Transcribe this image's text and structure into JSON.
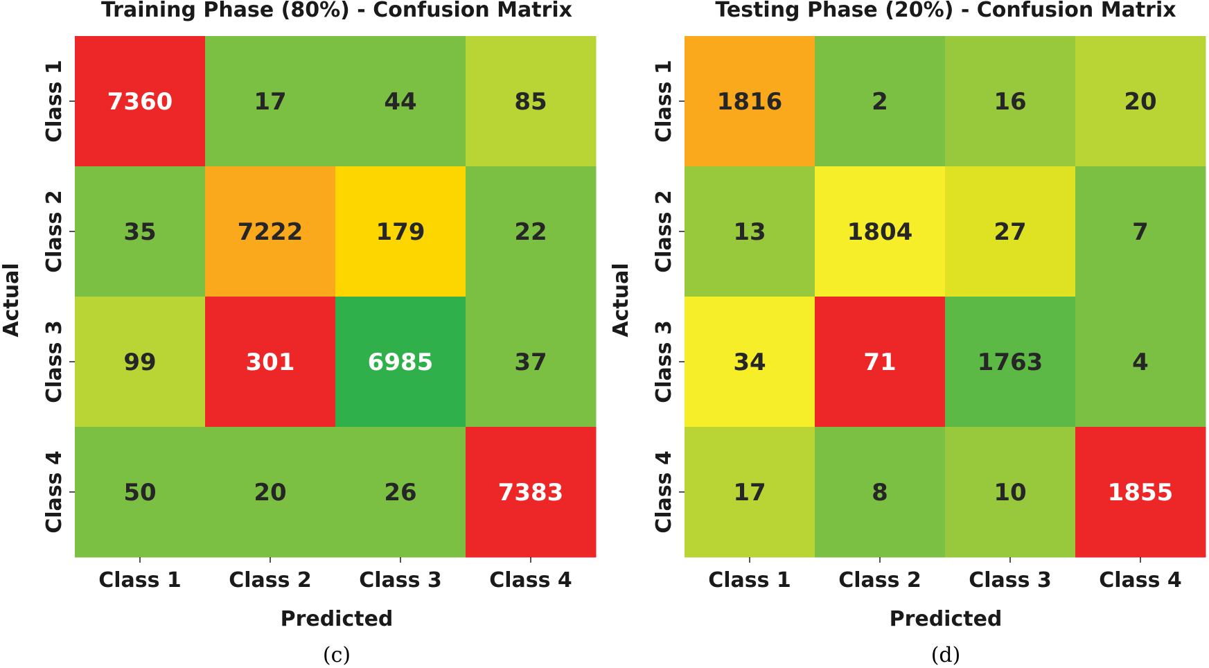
{
  "chart_data": [
    {
      "type": "heatmap",
      "title": "Training Phase (80%) - Confusion Matrix",
      "xlabel": "Predicted",
      "ylabel": "Actual",
      "x_categories": [
        "Class 1",
        "Class 2",
        "Class 3",
        "Class 4"
      ],
      "y_categories": [
        "Class 1",
        "Class 2",
        "Class 3",
        "Class 4"
      ],
      "values": [
        [
          7360,
          17,
          44,
          85
        ],
        [
          35,
          7222,
          179,
          22
        ],
        [
          99,
          301,
          6985,
          37
        ],
        [
          50,
          20,
          26,
          7383
        ]
      ],
      "cell_colors": [
        [
          "#ed2728",
          "#7cc043",
          "#7cc043",
          "#b8d435"
        ],
        [
          "#7cc043",
          "#faa91c",
          "#fdd600",
          "#7cc043"
        ],
        [
          "#b8d435",
          "#ed2728",
          "#30b04b",
          "#7cc043"
        ],
        [
          "#7cc043",
          "#7cc043",
          "#7cc043",
          "#ed2728"
        ]
      ],
      "text_colors": [
        [
          "#ffffff",
          "#262626",
          "#262626",
          "#262626"
        ],
        [
          "#262626",
          "#262626",
          "#262626",
          "#262626"
        ],
        [
          "#262626",
          "#ffffff",
          "#ffffff",
          "#262626"
        ],
        [
          "#262626",
          "#262626",
          "#262626",
          "#ffffff"
        ]
      ],
      "caption": "(c)"
    },
    {
      "type": "heatmap",
      "title": "Testing Phase (20%) - Confusion Matrix",
      "xlabel": "Predicted",
      "ylabel": "Actual",
      "x_categories": [
        "Class 1",
        "Class 2",
        "Class 3",
        "Class 4"
      ],
      "y_categories": [
        "Class 1",
        "Class 2",
        "Class 3",
        "Class 4"
      ],
      "values": [
        [
          1816,
          2,
          16,
          20
        ],
        [
          13,
          1804,
          27,
          7
        ],
        [
          34,
          71,
          1763,
          4
        ],
        [
          17,
          8,
          10,
          1855
        ]
      ],
      "cell_colors": [
        [
          "#faa91c",
          "#7cc043",
          "#98c93c",
          "#b8d435"
        ],
        [
          "#98c93c",
          "#f7ee2a",
          "#dfe222",
          "#7cc043"
        ],
        [
          "#f7ee2a",
          "#ed2728",
          "#5db946",
          "#7cc043"
        ],
        [
          "#b8d435",
          "#7cc043",
          "#98c93c",
          "#ed2728"
        ]
      ],
      "text_colors": [
        [
          "#262626",
          "#262626",
          "#262626",
          "#262626"
        ],
        [
          "#262626",
          "#262626",
          "#262626",
          "#262626"
        ],
        [
          "#262626",
          "#ffffff",
          "#262626",
          "#262626"
        ],
        [
          "#262626",
          "#262626",
          "#262626",
          "#ffffff"
        ]
      ],
      "caption": "(d)"
    }
  ]
}
